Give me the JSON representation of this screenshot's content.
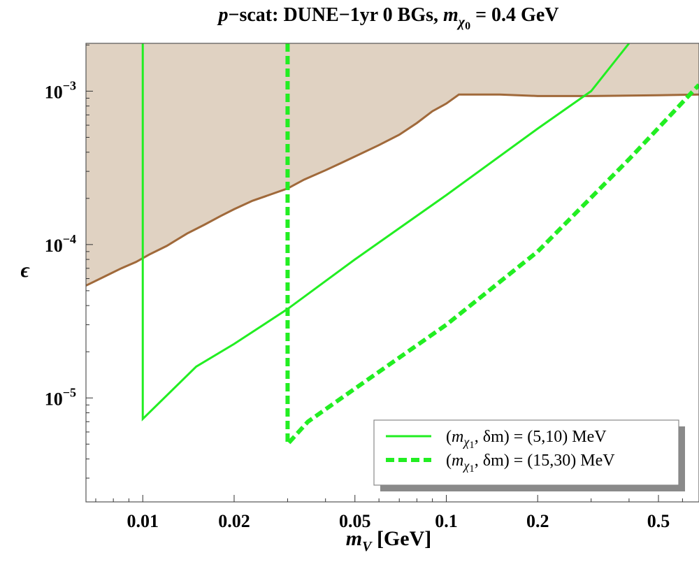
{
  "chart_data": {
    "type": "line",
    "title_parts": {
      "p": "p",
      "rest": "−scat: DUNE−1yr 0 BGs, ",
      "m": "m",
      "sub_chi": "χ",
      "sub_zero": "0",
      "value": " = 0.4 GeV"
    },
    "x_axis": {
      "scale": "log",
      "range": [
        0.0065,
        0.68
      ],
      "label_var": "m",
      "label_sub": "V",
      "label_unit": " [GeV]",
      "ticks": [
        {
          "value": 0.01,
          "label": "0.01"
        },
        {
          "value": 0.02,
          "label": "0.02"
        },
        {
          "value": 0.05,
          "label": "0.05"
        },
        {
          "value": 0.1,
          "label": "0.1"
        },
        {
          "value": 0.2,
          "label": "0.2"
        },
        {
          "value": 0.5,
          "label": "0.5"
        }
      ]
    },
    "y_axis": {
      "scale": "log",
      "range": [
        2.1e-06,
        0.00205
      ],
      "label": "ϵ",
      "ticks": [
        {
          "value": 1e-05,
          "base": "10",
          "exp": "−5"
        },
        {
          "value": 0.0001,
          "base": "10",
          "exp": "−4"
        },
        {
          "value": 0.001,
          "base": "10",
          "exp": "−3"
        }
      ]
    },
    "excluded_region": {
      "fill": "#e0d2c2",
      "stroke": "#a0693a",
      "boundary": [
        [
          0.0065,
          5.4e-05
        ],
        [
          0.0075,
          6.2e-05
        ],
        [
          0.0085,
          7e-05
        ],
        [
          0.0095,
          7.7e-05
        ],
        [
          0.0105,
          8.6e-05
        ],
        [
          0.012,
          9.8e-05
        ],
        [
          0.014,
          0.000118
        ],
        [
          0.016,
          0.000135
        ],
        [
          0.018,
          0.000153
        ],
        [
          0.02,
          0.00017
        ],
        [
          0.023,
          0.000193
        ],
        [
          0.026,
          0.00021
        ],
        [
          0.03,
          0.000232
        ],
        [
          0.034,
          0.000265
        ],
        [
          0.04,
          0.000305
        ],
        [
          0.045,
          0.00034
        ],
        [
          0.05,
          0.000375
        ],
        [
          0.06,
          0.000445
        ],
        [
          0.07,
          0.00052
        ],
        [
          0.08,
          0.00062
        ],
        [
          0.09,
          0.00074
        ],
        [
          0.1,
          0.00083
        ],
        [
          0.11,
          0.00095
        ],
        [
          0.15,
          0.00095
        ],
        [
          0.2,
          0.00093
        ],
        [
          0.3,
          0.00093
        ],
        [
          0.5,
          0.00094
        ],
        [
          0.68,
          0.00095
        ]
      ]
    },
    "series": [
      {
        "legend_label": "(mχ1, δm) = (5,10) MeV",
        "legend_var": "m",
        "legend_sub_chi": "χ",
        "legend_sub_num": "1",
        "legend_rest": ", δm) = (5,10) MeV",
        "color": "#22ee22",
        "style": "solid",
        "points": [
          [
            0.01,
            0.00205
          ],
          [
            0.01,
            7.3e-06
          ],
          [
            0.015,
            1.6e-05
          ],
          [
            0.02,
            2.25e-05
          ],
          [
            0.03,
            3.8e-05
          ],
          [
            0.05,
            8e-05
          ],
          [
            0.1,
            0.00021
          ],
          [
            0.2,
            0.00057
          ],
          [
            0.3,
            0.001
          ],
          [
            0.4,
            0.00205
          ]
        ]
      },
      {
        "legend_label": "(mχ1, δm) = (15,30) MeV",
        "legend_var": "m",
        "legend_sub_chi": "χ",
        "legend_sub_num": "1",
        "legend_rest": ", δm) = (15,30) MeV",
        "color": "#22ee22",
        "style": "dashed",
        "points": [
          [
            0.03,
            0.00205
          ],
          [
            0.03,
            5e-06
          ],
          [
            0.035,
            7e-06
          ],
          [
            0.05,
            1.15e-05
          ],
          [
            0.1,
            3e-05
          ],
          [
            0.2,
            9e-05
          ],
          [
            0.4,
            0.00036
          ],
          [
            0.68,
            0.0011
          ]
        ]
      }
    ],
    "legend_position": "bottom-right"
  }
}
